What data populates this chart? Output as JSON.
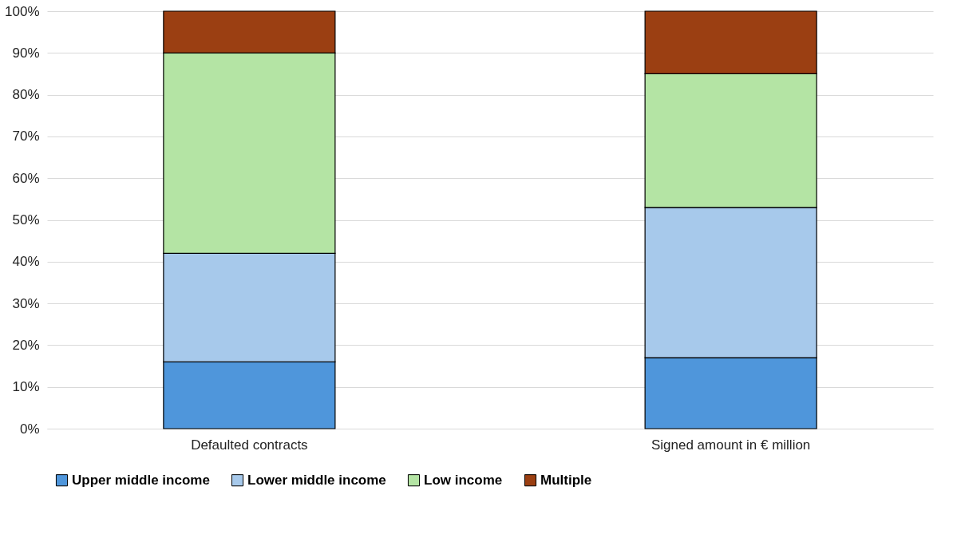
{
  "chart_data": {
    "type": "bar",
    "stacked": true,
    "categories": [
      "Defaulted contracts",
      "Signed amount in € million"
    ],
    "series": [
      {
        "name": "Upper middle income",
        "color": "#4f96db",
        "values": [
          16,
          17
        ]
      },
      {
        "name": "Lower middle income",
        "color": "#a7c9eb",
        "values": [
          26,
          36
        ]
      },
      {
        "name": "Low income",
        "color": "#b4e4a4",
        "values": [
          48,
          32
        ]
      },
      {
        "name": "Multiple",
        "color": "#9b3f12",
        "values": [
          10,
          15
        ]
      }
    ],
    "ylim": [
      0,
      100
    ],
    "yticks": [
      {
        "value": 0,
        "label": "0%"
      },
      {
        "value": 10,
        "label": "10%"
      },
      {
        "value": 20,
        "label": "20%"
      },
      {
        "value": 30,
        "label": "30%"
      },
      {
        "value": 40,
        "label": "40%"
      },
      {
        "value": 50,
        "label": "50%"
      },
      {
        "value": 60,
        "label": "60%"
      },
      {
        "value": 70,
        "label": "70%"
      },
      {
        "value": 80,
        "label": "80%"
      },
      {
        "value": 90,
        "label": "90%"
      },
      {
        "value": 100,
        "label": "100%"
      }
    ],
    "grid": "y",
    "legend": "bottom"
  }
}
